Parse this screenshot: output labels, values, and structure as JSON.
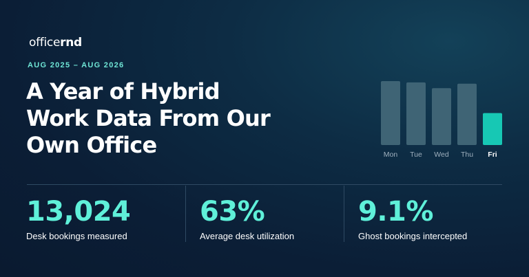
{
  "brand": {
    "logo_light": "office",
    "logo_bold": "rnd"
  },
  "eyebrow": "AUG 2025 – AUG 2026",
  "title_lines": [
    "A Year of Hybrid",
    "Work Data From Our",
    "Own Office"
  ],
  "chart_data": {
    "type": "bar",
    "categories": [
      "Mon",
      "Tue",
      "Wed",
      "Thu",
      "Fri"
    ],
    "values": [
      100,
      98,
      89,
      96,
      50
    ],
    "highlight": "Fri",
    "colors": {
      "bar": "#3f6475",
      "highlight": "#17c8b4",
      "label": "#9fb0be",
      "highlight_label": "#ffffff"
    }
  },
  "stats": [
    {
      "value": "13,024",
      "label": "Desk bookings measured"
    },
    {
      "value": "63%",
      "label": "Average desk utilization"
    },
    {
      "value": "9.1%",
      "label": "Ghost bookings intercepted"
    }
  ]
}
